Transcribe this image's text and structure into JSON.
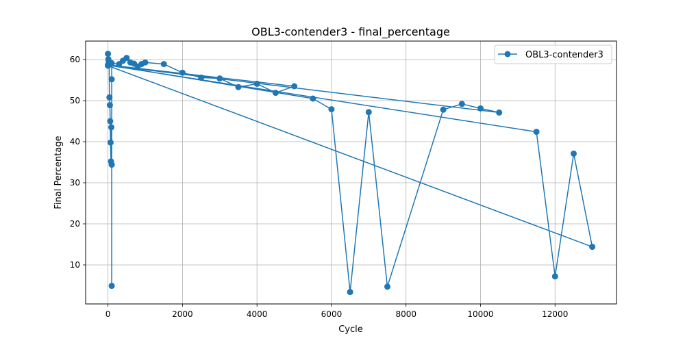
{
  "chart_data": {
    "type": "line",
    "title": "OBL3-contender3 - final_percentage",
    "xlabel": "Cycle",
    "ylabel": "Final Percentage",
    "xlim": [
      -600,
      13650
    ],
    "ylim": [
      0.5,
      64.5
    ],
    "xticks": [
      0,
      2000,
      4000,
      6000,
      8000,
      10000,
      12000
    ],
    "yticks": [
      10,
      20,
      30,
      40,
      50,
      60
    ],
    "grid": true,
    "legend_position": "top-right",
    "series": [
      {
        "name": "OBL3-contender3",
        "color": "#1f77b4",
        "marker": "circle",
        "x": [
          0,
          10,
          20,
          30,
          40,
          50,
          60,
          70,
          80,
          90,
          100,
          100,
          100,
          100,
          300,
          400,
          500,
          600,
          700,
          800,
          900,
          1000,
          1500,
          2000,
          2500,
          3000,
          3500,
          4000,
          4500,
          5000,
          0,
          5500,
          6000,
          6500,
          7000,
          7500,
          9000,
          9500,
          10000,
          10500,
          0,
          11500,
          12000,
          12500,
          13000,
          0
        ],
        "y": [
          61.4,
          60.1,
          59.6,
          58.7,
          50.8,
          48.9,
          45.0,
          39.8,
          35.2,
          43.5,
          34.4,
          4.9,
          55.2,
          59.1,
          58.9,
          59.7,
          60.4,
          59.3,
          59.0,
          58.3,
          58.9,
          59.3,
          58.9,
          56.8,
          55.6,
          55.4,
          53.3,
          54.1,
          51.9,
          53.5,
          58.7,
          50.5,
          47.9,
          3.4,
          47.2,
          4.7,
          47.8,
          49.2,
          48.1,
          47.1,
          58.6,
          42.4,
          7.2,
          37.1,
          14.4,
          58.5
        ]
      }
    ]
  }
}
